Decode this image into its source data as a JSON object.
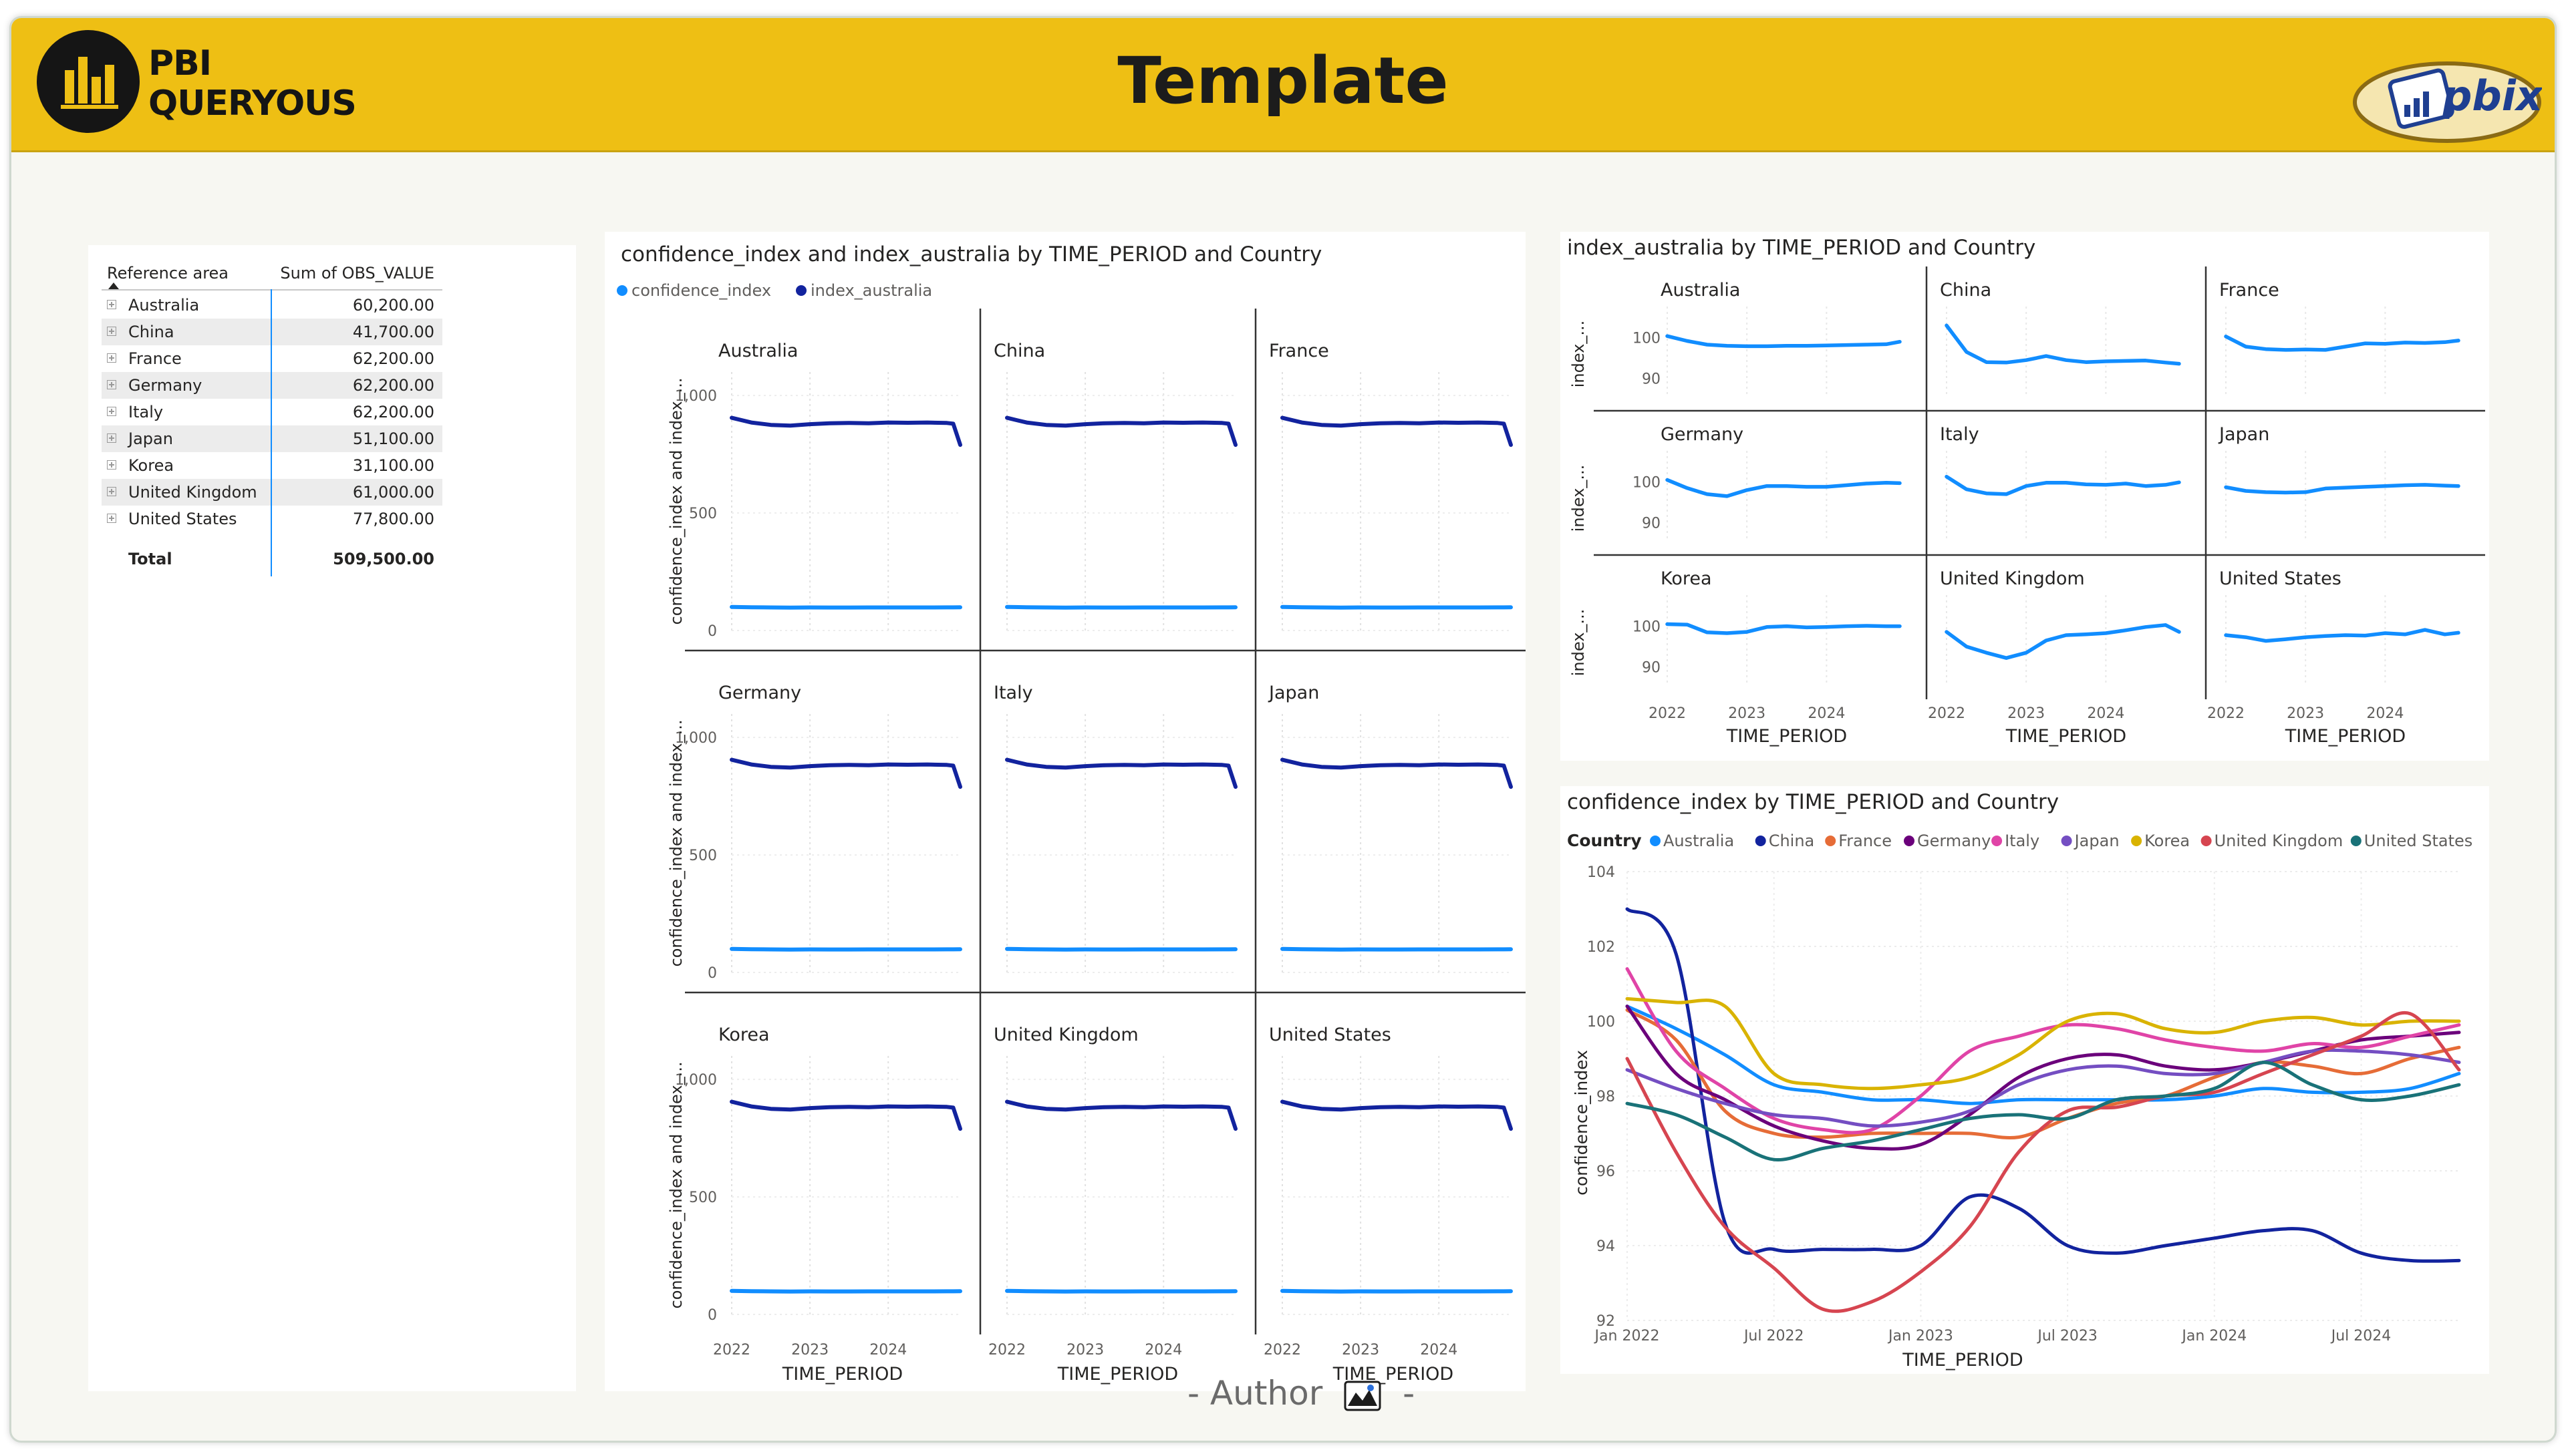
{
  "header": {
    "title": "Template",
    "logo_line1": "PBI",
    "logo_line2": "QUERYOUS",
    "badge_text": "pbix"
  },
  "table": {
    "columns": [
      "Reference area",
      "Sum of OBS_VALUE"
    ],
    "rows": [
      {
        "name": "Australia",
        "value": "60,200.00"
      },
      {
        "name": "China",
        "value": "41,700.00"
      },
      {
        "name": "France",
        "value": "62,200.00"
      },
      {
        "name": "Germany",
        "value": "62,200.00"
      },
      {
        "name": "Italy",
        "value": "62,200.00"
      },
      {
        "name": "Japan",
        "value": "51,100.00"
      },
      {
        "name": "Korea",
        "value": "31,100.00"
      },
      {
        "name": "United Kingdom",
        "value": "61,000.00"
      },
      {
        "name": "United States",
        "value": "77,800.00"
      }
    ],
    "total_label": "Total",
    "total_value": "509,500.00"
  },
  "footer": {
    "author_text": "- Author",
    "dash": "-"
  },
  "colors": {
    "header_bg": "#eebf14",
    "confidence_index": "#118dff",
    "index_australia": "#12239e"
  },
  "chart_data": [
    {
      "type": "line",
      "title": "confidence_index and index_australia by TIME_PERIOD and Country",
      "small_multiples": [
        "Australia",
        "China",
        "France",
        "Germany",
        "Italy",
        "Japan",
        "Korea",
        "United Kingdom",
        "United States"
      ],
      "legend": [
        "confidence_index",
        "index_australia"
      ],
      "legend_position": "top-left",
      "xlabel": "TIME_PERIOD",
      "ylabel": "confidence_index and index_...",
      "x_ticks": [
        "2022",
        "2023",
        "2024"
      ],
      "y_ticks": [
        "0",
        "500",
        "1,000"
      ],
      "ylim": [
        0,
        1100
      ],
      "xlim": [
        2022.0,
        2024.92
      ],
      "x": [
        2022.0,
        2022.25,
        2022.5,
        2022.75,
        2023.0,
        2023.25,
        2023.5,
        2023.75,
        2024.0,
        2024.25,
        2024.5,
        2024.75,
        2024.83,
        2024.92
      ],
      "series": [
        {
          "name": "index_australia",
          "color": "#12239e",
          "values": [
            905,
            885,
            875,
            872,
            878,
            882,
            883,
            882,
            885,
            884,
            885,
            883,
            880,
            790
          ]
        },
        {
          "name": "confidence_index",
          "color": "#118dff",
          "values": [
            100,
            99,
            98,
            97.5,
            98,
            97.8,
            97.9,
            98,
            98,
            98,
            98,
            98.3,
            98.3,
            98.5
          ]
        }
      ]
    },
    {
      "type": "line",
      "title": "index_australia by TIME_PERIOD and Country",
      "small_multiples": [
        "Australia",
        "China",
        "France",
        "Germany",
        "Italy",
        "Japan",
        "Korea",
        "United Kingdom",
        "United States"
      ],
      "xlabel": "TIME_PERIOD",
      "ylabel": "index_...",
      "x_ticks": [
        "2022",
        "2023",
        "2024"
      ],
      "y_ticks": [
        "90",
        "100"
      ],
      "ylim": [
        86,
        106
      ],
      "xlim": [
        2022.0,
        2024.92
      ],
      "x": [
        2022.0,
        2022.25,
        2022.5,
        2022.75,
        2023.0,
        2023.25,
        2023.5,
        2023.75,
        2024.0,
        2024.25,
        2024.5,
        2024.75,
        2024.92
      ],
      "series": [
        {
          "name": "Australia",
          "values": [
            100.4,
            99.2,
            98.3,
            98.0,
            97.9,
            97.9,
            98.0,
            98.0,
            98.1,
            98.2,
            98.3,
            98.4,
            99.0
          ]
        },
        {
          "name": "China",
          "values": [
            103.0,
            96.5,
            94.0,
            93.9,
            94.5,
            95.5,
            94.5,
            94.0,
            94.2,
            94.3,
            94.4,
            93.9,
            93.6
          ]
        },
        {
          "name": "France",
          "values": [
            100.3,
            97.8,
            97.2,
            97.0,
            97.1,
            97.0,
            97.8,
            98.6,
            98.5,
            98.8,
            98.7,
            98.9,
            99.3
          ]
        },
        {
          "name": "Germany",
          "values": [
            100.5,
            98.5,
            97.0,
            96.5,
            98.0,
            99.0,
            99.0,
            98.8,
            98.8,
            99.2,
            99.6,
            99.8,
            99.7
          ]
        },
        {
          "name": "Italy",
          "values": [
            101.3,
            98.2,
            97.2,
            97.0,
            99.0,
            99.8,
            99.8,
            99.4,
            99.3,
            99.6,
            99.0,
            99.3,
            99.9
          ]
        },
        {
          "name": "Japan",
          "values": [
            98.7,
            97.8,
            97.5,
            97.4,
            97.5,
            98.4,
            98.6,
            98.8,
            99.0,
            99.2,
            99.3,
            99.1,
            99.0
          ]
        },
        {
          "name": "Korea",
          "values": [
            100.5,
            100.4,
            98.5,
            98.3,
            98.6,
            99.8,
            100.0,
            99.7,
            99.8,
            100.0,
            100.1,
            100.0,
            100.0
          ]
        },
        {
          "name": "United Kingdom",
          "values": [
            98.6,
            95.0,
            93.5,
            92.2,
            93.5,
            96.5,
            97.8,
            98.0,
            98.3,
            99.0,
            99.8,
            100.3,
            98.6
          ]
        },
        {
          "name": "United States",
          "values": [
            97.8,
            97.3,
            96.4,
            96.8,
            97.3,
            97.6,
            97.8,
            97.7,
            98.3,
            98.0,
            99.1,
            98.0,
            98.4
          ]
        }
      ]
    },
    {
      "type": "line",
      "title": "confidence_index by TIME_PERIOD and Country",
      "legend_title": "Country",
      "legend": [
        "Australia",
        "China",
        "France",
        "Germany",
        "Italy",
        "Japan",
        "Korea",
        "United Kingdom",
        "United States"
      ],
      "legend_position": "top-left",
      "xlabel": "TIME_PERIOD",
      "ylabel": "confidence_index",
      "x_ticks": [
        "Jan 2022",
        "Jul 2022",
        "Jan 2023",
        "Jul 2023",
        "Jan 2024",
        "Jul 2024"
      ],
      "y_ticks": [
        "92",
        "94",
        "96",
        "98",
        "100",
        "102",
        "104"
      ],
      "ylim": [
        92,
        104
      ],
      "xlim": [
        0,
        34
      ],
      "x_month_index": [
        0,
        2,
        4,
        6,
        8,
        10,
        12,
        14,
        16,
        18,
        20,
        22,
        24,
        26,
        28,
        30,
        32,
        34
      ],
      "series": [
        {
          "name": "Australia",
          "color": "#118dff",
          "values": [
            100.4,
            99.8,
            99.1,
            98.3,
            98.1,
            97.9,
            97.9,
            97.8,
            97.9,
            97.9,
            97.9,
            97.9,
            98.0,
            98.2,
            98.1,
            98.1,
            98.2,
            98.6
          ]
        },
        {
          "name": "China",
          "color": "#12239e",
          "values": [
            103.0,
            101.8,
            94.6,
            93.9,
            93.9,
            93.9,
            94.0,
            95.3,
            95.0,
            94.0,
            93.8,
            94.0,
            94.2,
            94.4,
            94.4,
            93.8,
            93.6,
            93.6
          ]
        },
        {
          "name": "France",
          "color": "#e66c37",
          "values": [
            100.3,
            99.5,
            97.6,
            97.0,
            96.9,
            97.0,
            97.0,
            97.0,
            96.9,
            97.4,
            97.8,
            98.0,
            98.5,
            98.9,
            98.8,
            98.6,
            99.0,
            99.3
          ]
        },
        {
          "name": "Germany",
          "color": "#6b007b",
          "values": [
            100.4,
            98.6,
            97.9,
            97.2,
            96.8,
            96.6,
            96.7,
            97.5,
            98.5,
            99.0,
            99.1,
            98.8,
            98.7,
            98.9,
            99.2,
            99.5,
            99.6,
            99.7
          ]
        },
        {
          "name": "Italy",
          "color": "#e044a7",
          "values": [
            101.4,
            99.2,
            98.2,
            97.4,
            97.1,
            97.1,
            98.0,
            99.2,
            99.6,
            99.9,
            99.8,
            99.5,
            99.3,
            99.2,
            99.4,
            99.3,
            99.6,
            99.9
          ]
        },
        {
          "name": "Japan",
          "color": "#744ec2",
          "values": [
            98.7,
            98.2,
            97.8,
            97.5,
            97.4,
            97.2,
            97.3,
            97.6,
            98.3,
            98.7,
            98.8,
            98.6,
            98.6,
            98.9,
            99.2,
            99.2,
            99.1,
            98.9
          ]
        },
        {
          "name": "Korea",
          "color": "#d9b300",
          "values": [
            100.6,
            100.5,
            100.4,
            98.6,
            98.3,
            98.2,
            98.3,
            98.5,
            99.1,
            100.0,
            100.2,
            99.8,
            99.7,
            100.0,
            100.1,
            99.9,
            100.0,
            100.0
          ]
        },
        {
          "name": "United Kingdom",
          "color": "#d64550",
          "values": [
            99.0,
            96.5,
            94.5,
            93.4,
            92.3,
            92.5,
            93.3,
            94.5,
            96.5,
            97.6,
            97.7,
            98.0,
            98.1,
            98.6,
            99.1,
            99.6,
            100.2,
            98.7
          ]
        },
        {
          "name": "United States",
          "color": "#197278",
          "values": [
            97.8,
            97.5,
            96.9,
            96.3,
            96.6,
            96.8,
            97.1,
            97.4,
            97.5,
            97.4,
            97.9,
            98.0,
            98.2,
            98.9,
            98.3,
            97.9,
            98.0,
            98.3
          ]
        }
      ]
    }
  ]
}
